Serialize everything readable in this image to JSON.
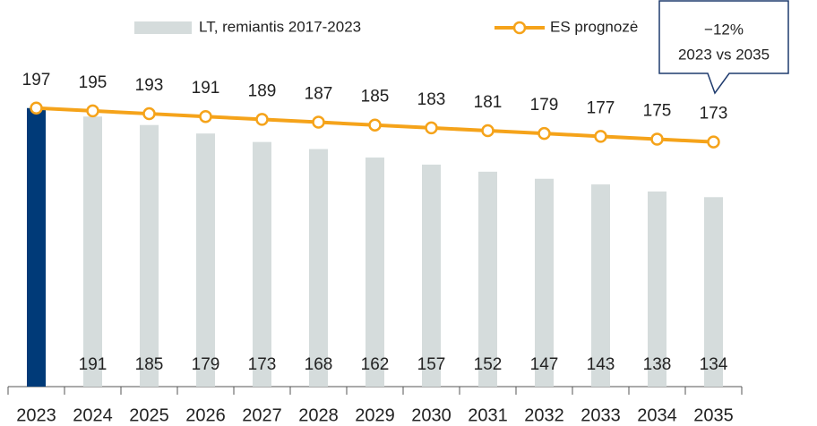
{
  "chart_data": {
    "type": "bar_line",
    "categories": [
      "2023",
      "2024",
      "2025",
      "2026",
      "2027",
      "2028",
      "2029",
      "2030",
      "2031",
      "2032",
      "2033",
      "2034",
      "2035"
    ],
    "series": [
      {
        "name": "LT, remiantis 2017-2023",
        "type": "bar",
        "color": "#d5dcdc",
        "colors": [
          "#003a78",
          "#d5dcdc",
          "#d5dcdc",
          "#d5dcdc",
          "#d5dcdc",
          "#d5dcdc",
          "#d5dcdc",
          "#d5dcdc",
          "#d5dcdc",
          "#d5dcdc",
          "#d5dcdc",
          "#d5dcdc",
          "#d5dcdc"
        ],
        "values": [
          197,
          191,
          185,
          179,
          173,
          168,
          162,
          157,
          152,
          147,
          143,
          138,
          134
        ],
        "value_labels": [
          null,
          "191",
          "185",
          "179",
          "173",
          "168",
          "162",
          "157",
          "152",
          "147",
          "143",
          "138",
          "134"
        ]
      },
      {
        "name": "ES prognozė",
        "type": "line",
        "color": "#f5a31a",
        "values": [
          197,
          195,
          193,
          191,
          189,
          187,
          185,
          183,
          181,
          179,
          177,
          175,
          173
        ]
      }
    ],
    "ylim": [
      0,
      200
    ],
    "annotation": {
      "lines": [
        "−12%",
        "2023 vs 2035"
      ]
    }
  }
}
